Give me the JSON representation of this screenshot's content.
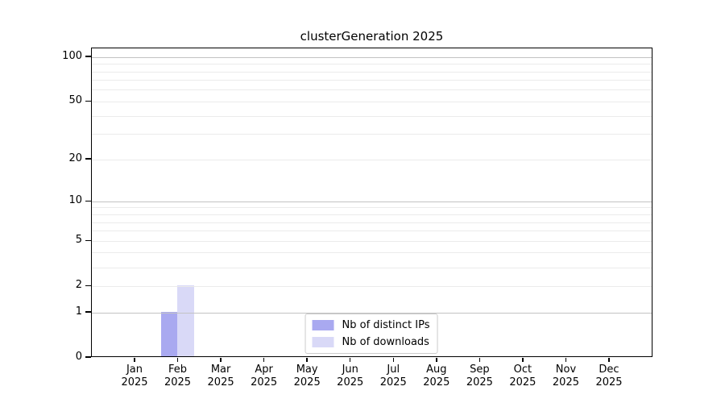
{
  "chart_data": {
    "type": "bar",
    "title": "clusterGeneration 2025",
    "categories": [
      {
        "month": "Jan",
        "year": "2025"
      },
      {
        "month": "Feb",
        "year": "2025"
      },
      {
        "month": "Mar",
        "year": "2025"
      },
      {
        "month": "Apr",
        "year": "2025"
      },
      {
        "month": "May",
        "year": "2025"
      },
      {
        "month": "Jun",
        "year": "2025"
      },
      {
        "month": "Jul",
        "year": "2025"
      },
      {
        "month": "Aug",
        "year": "2025"
      },
      {
        "month": "Sep",
        "year": "2025"
      },
      {
        "month": "Oct",
        "year": "2025"
      },
      {
        "month": "Nov",
        "year": "2025"
      },
      {
        "month": "Dec",
        "year": "2025"
      }
    ],
    "series": [
      {
        "name": "Nb of distinct IPs",
        "color": "#a9a9f0",
        "values": [
          0,
          1,
          0,
          0,
          0,
          0,
          0,
          0,
          0,
          0,
          0,
          0
        ]
      },
      {
        "name": "Nb of downloads",
        "color": "#d9d9f7",
        "values": [
          0,
          2,
          0,
          0,
          0,
          0,
          0,
          0,
          0,
          0,
          0,
          0
        ]
      }
    ],
    "xlabel": "",
    "ylabel": "",
    "y_scale": "log1p",
    "ylim": [
      0,
      115
    ],
    "y_ticks": [
      0,
      1,
      2,
      5,
      10,
      20,
      50,
      100
    ],
    "y_major_gridlines": [
      1,
      10,
      100
    ],
    "y_minor_gridlines": [
      2,
      3,
      4,
      5,
      6,
      7,
      8,
      9,
      20,
      30,
      40,
      50,
      60,
      70,
      80,
      90
    ],
    "grid": "horizontal",
    "legend_position": "lower center",
    "colors": {
      "major_grid": "#c3c3c3",
      "minor_grid": "#ebebeb",
      "axis": "#000000",
      "legend_border": "#cccccc"
    }
  }
}
